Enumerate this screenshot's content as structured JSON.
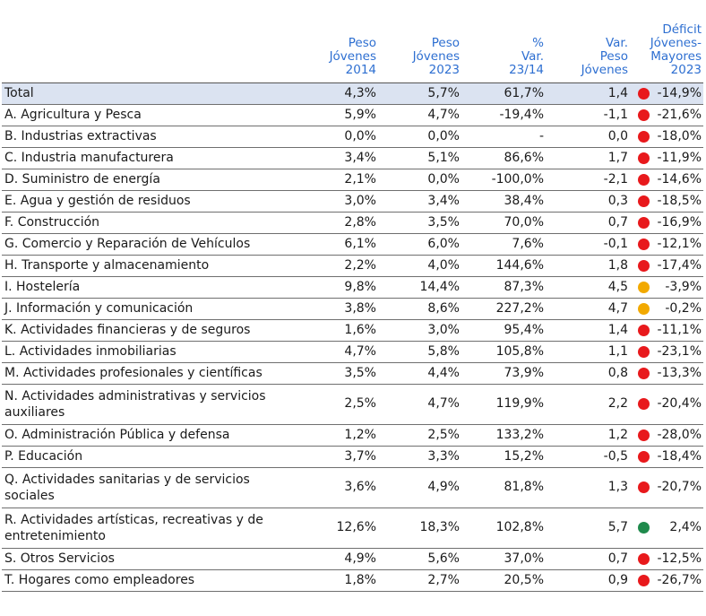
{
  "headers": {
    "peso2014": [
      "Peso",
      "Jóvenes",
      "2014"
    ],
    "peso2023": [
      "Peso",
      "Jóvenes",
      "2023"
    ],
    "var": [
      "%",
      "Var.",
      "23/14"
    ],
    "varpeso": [
      "Var.",
      "Peso",
      "Jóvenes"
    ],
    "deficit": [
      "Déficit",
      "Jóvenes-",
      "Mayores",
      "2023"
    ]
  },
  "rows": [
    {
      "name": "Total",
      "p2014": "4,3%",
      "p2023": "5,7%",
      "var": "61,7%",
      "vp": "1,4",
      "status": "red",
      "deficit": "-14,9%",
      "total": true
    },
    {
      "name": "A. Agricultura y Pesca",
      "p2014": "5,9%",
      "p2023": "4,7%",
      "var": "-19,4%",
      "vp": "-1,1",
      "status": "red",
      "deficit": "-21,6%"
    },
    {
      "name": "B. Industrias extractivas",
      "p2014": "0,0%",
      "p2023": "0,0%",
      "var": "-",
      "vp": "0,0",
      "status": "red",
      "deficit": "-18,0%"
    },
    {
      "name": "C. Industria manufacturera",
      "p2014": "3,4%",
      "p2023": "5,1%",
      "var": "86,6%",
      "vp": "1,7",
      "status": "red",
      "deficit": "-11,9%"
    },
    {
      "name": "D. Suministro de energía",
      "p2014": "2,1%",
      "p2023": "0,0%",
      "var": "-100,0%",
      "vp": "-2,1",
      "status": "red",
      "deficit": "-14,6%"
    },
    {
      "name": "E. Agua y gestión de residuos",
      "p2014": "3,0%",
      "p2023": "3,4%",
      "var": "38,4%",
      "vp": "0,3",
      "status": "red",
      "deficit": "-18,5%"
    },
    {
      "name": "F. Construcción",
      "p2014": "2,8%",
      "p2023": "3,5%",
      "var": "70,0%",
      "vp": "0,7",
      "status": "red",
      "deficit": "-16,9%"
    },
    {
      "name": "G. Comercio y Reparación de Vehículos",
      "p2014": "6,1%",
      "p2023": "6,0%",
      "var": "7,6%",
      "vp": "-0,1",
      "status": "red",
      "deficit": "-12,1%"
    },
    {
      "name": "H. Transporte y almacenamiento",
      "p2014": "2,2%",
      "p2023": "4,0%",
      "var": "144,6%",
      "vp": "1,8",
      "status": "red",
      "deficit": "-17,4%"
    },
    {
      "name": "I. Hostelería",
      "p2014": "9,8%",
      "p2023": "14,4%",
      "var": "87,3%",
      "vp": "4,5",
      "status": "amber",
      "deficit": "-3,9%"
    },
    {
      "name": "J. Información y comunicación",
      "p2014": "3,8%",
      "p2023": "8,6%",
      "var": "227,2%",
      "vp": "4,7",
      "status": "amber",
      "deficit": "-0,2%"
    },
    {
      "name": "K. Actividades financieras y de seguros",
      "p2014": "1,6%",
      "p2023": "3,0%",
      "var": "95,4%",
      "vp": "1,4",
      "status": "red",
      "deficit": "-11,1%"
    },
    {
      "name": "L. Actividades inmobiliarias",
      "p2014": "4,7%",
      "p2023": "5,8%",
      "var": "105,8%",
      "vp": "1,1",
      "status": "red",
      "deficit": "-23,1%"
    },
    {
      "name": "M. Actividades profesionales y científicas",
      "p2014": "3,5%",
      "p2023": "4,4%",
      "var": "73,9%",
      "vp": "0,8",
      "status": "red",
      "deficit": "-13,3%"
    },
    {
      "name": "N. Actividades administrativas y servicios auxiliares",
      "p2014": "2,5%",
      "p2023": "4,7%",
      "var": "119,9%",
      "vp": "2,2",
      "status": "red",
      "deficit": "-20,4%",
      "wrap": true
    },
    {
      "name": "O. Administración Pública y defensa",
      "p2014": "1,2%",
      "p2023": "2,5%",
      "var": "133,2%",
      "vp": "1,2",
      "status": "red",
      "deficit": "-28,0%"
    },
    {
      "name": "P. Educación",
      "p2014": "3,7%",
      "p2023": "3,3%",
      "var": "15,2%",
      "vp": "-0,5",
      "status": "red",
      "deficit": "-18,4%"
    },
    {
      "name": "Q. Actividades sanitarias y de servicios sociales",
      "p2014": "3,6%",
      "p2023": "4,9%",
      "var": "81,8%",
      "vp": "1,3",
      "status": "red",
      "deficit": "-20,7%",
      "wrap": true
    },
    {
      "name": "R. Actividades artísticas, recreativas y de entretenimiento",
      "p2014": "12,6%",
      "p2023": "18,3%",
      "var": "102,8%",
      "vp": "5,7",
      "status": "green",
      "deficit": "2,4%",
      "wrap": true
    },
    {
      "name": "S. Otros Servicios",
      "p2014": "4,9%",
      "p2023": "5,6%",
      "var": "37,0%",
      "vp": "0,7",
      "status": "red",
      "deficit": "-12,5%"
    },
    {
      "name": "T. Hogares como empleadores",
      "p2014": "1,8%",
      "p2023": "2,7%",
      "var": "20,5%",
      "vp": "0,9",
      "status": "red",
      "deficit": "-26,7%"
    }
  ],
  "colors": {
    "header_text": "#2e6fd1",
    "total_bg": "#dbe3f1",
    "red": "#e8191c",
    "amber": "#f2a900",
    "green": "#1f8a4c"
  }
}
